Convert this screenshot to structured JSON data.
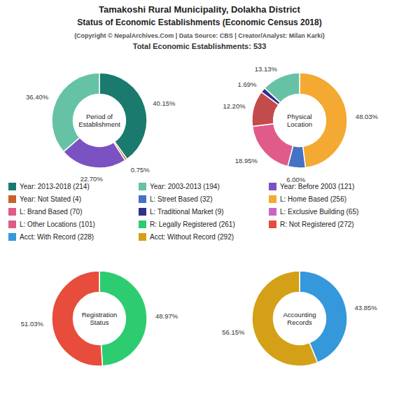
{
  "title": "Tamakoshi Rural Municipality, Dolakha District\nStatus of Economic Establishments (Economic Census 2018)",
  "subtitle": "(Copyright © NepalArchives.Com | Data Source: CBS | Creator/Analyst: Milan Karki)",
  "annotations": [
    "Total Economic Establishments: 533"
  ],
  "chart_data": [
    {
      "type": "pie",
      "title": "Period of\nEstablishment",
      "values": [
        40.15,
        0.75,
        22.7,
        36.4
      ],
      "value_labels": [
        "40.15%",
        "0.75%",
        "22.70%",
        "36.40%"
      ],
      "colors": [
        "#1a7a6e",
        "#c8622a",
        "#7b52c1",
        "#66c2a5"
      ],
      "data_labels": true
    },
    {
      "type": "pie",
      "title": "Physical\nLocation",
      "values": [
        48.03,
        6.0,
        18.95,
        12.2,
        1.69,
        13.13
      ],
      "value_labels": [
        "48.03%",
        "6.00%",
        "18.95%",
        "12.20%",
        "1.69%",
        "13.13%"
      ],
      "colors": [
        "#f4a932",
        "#4472c4",
        "#e05a8a",
        "#c44b4b",
        "#2f2f8c",
        "#66c2a5"
      ],
      "data_labels": true
    },
    {
      "type": "pie",
      "title": "Registration\nStatus",
      "values": [
        48.97,
        51.03
      ],
      "value_labels": [
        "48.97%",
        "51.03%"
      ],
      "colors": [
        "#2ecc71",
        "#e74c3c"
      ],
      "data_labels": true
    },
    {
      "type": "pie",
      "title": "Accounting\nRecords",
      "values": [
        43.85,
        56.15
      ],
      "value_labels": [
        "43.85%",
        "56.15%"
      ],
      "colors": [
        "#3498db",
        "#d4a017"
      ],
      "data_labels": true
    }
  ],
  "legend_items": [
    {
      "name": "Year: 2013-2018 (214)",
      "color": "#1a7a6e"
    },
    {
      "name": "Year: 2003-2013 (194)",
      "color": "#66c2a5"
    },
    {
      "name": "Year: Before 2003 (121)",
      "color": "#7b52c1"
    },
    {
      "name": "Year: Not Stated (4)",
      "color": "#c8622a"
    },
    {
      "name": "L: Street Based (32)",
      "color": "#4472c4"
    },
    {
      "name": "L: Home Based (256)",
      "color": "#f4a932"
    },
    {
      "name": "L: Brand Based (70)",
      "color": "#e05a8a"
    },
    {
      "name": "L: Traditional Market (9)",
      "color": "#2f2f8c"
    },
    {
      "name": "L: Exclusive Building (65)",
      "color": "#c966c2"
    },
    {
      "name": "L: Other Locations (101)",
      "color": "#e05a8a"
    },
    {
      "name": "R: Legally Registered (261)",
      "color": "#2ecc71"
    },
    {
      "name": "R: Not Registered (272)",
      "color": "#e74c3c"
    },
    {
      "name": "Acct: With Record (228)",
      "color": "#3498db"
    },
    {
      "name": "Acct: Without Record (292)",
      "color": "#d4a017"
    }
  ]
}
